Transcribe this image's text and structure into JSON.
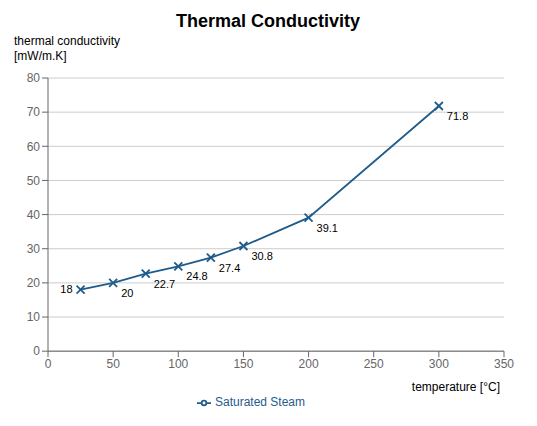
{
  "chart_data": {
    "type": "line",
    "title": "Thermal Conductivity",
    "ylabel": "thermal conductivity\n[mW/m.K]",
    "xlabel": "temperature [°C]",
    "x": [
      25,
      50,
      75,
      100,
      125,
      150,
      200,
      300
    ],
    "series": [
      {
        "name": "Saturated Steam",
        "color": "#1F5C8B",
        "marker": "x",
        "line_style": "solid",
        "values": [
          18,
          20,
          22.7,
          24.8,
          27.4,
          30.8,
          39.1,
          71.8
        ]
      }
    ],
    "xlim": [
      0,
      350
    ],
    "ylim": [
      0,
      80
    ],
    "xticks": [
      0,
      50,
      100,
      150,
      200,
      250,
      300,
      350
    ],
    "yticks": [
      0,
      10,
      20,
      30,
      40,
      50,
      60,
      70,
      80
    ],
    "grid": true,
    "legend": "bottom",
    "data_labels": true
  }
}
